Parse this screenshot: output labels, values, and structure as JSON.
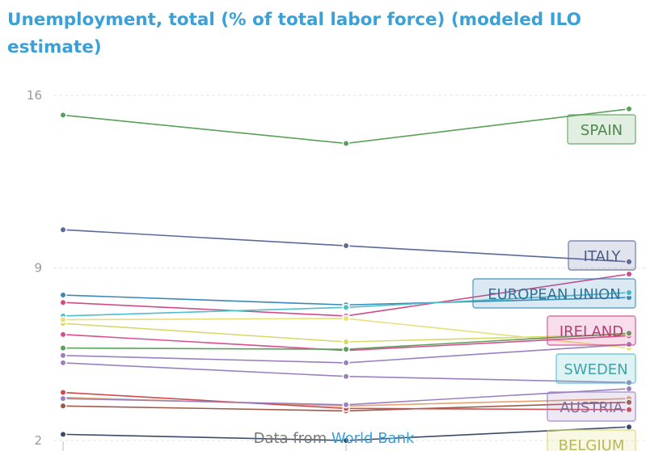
{
  "title": "Unemployment, total (% of total labor force) (modeled ILO estimate)",
  "source": {
    "prefix": "Data from ",
    "link_label": "World Bank"
  },
  "chart_data": {
    "type": "line",
    "title": "Unemployment, total (% of total labor force) (modeled ILO estimate)",
    "xlabel": "",
    "ylabel": "",
    "x": [
      0,
      1,
      2
    ],
    "y_ticks": [
      16,
      9,
      2
    ],
    "ylim": [
      2,
      16
    ],
    "grid": true,
    "series": [
      {
        "name": "SPAIN",
        "color": "#5aa05a",
        "values": [
          15.2,
          14.05,
          15.45
        ],
        "labeled": true
      },
      {
        "name": "ITALY",
        "color": "#5a6a9c",
        "values": [
          10.55,
          9.9,
          9.25
        ],
        "labeled": true
      },
      {
        "name": "EUROPEAN UNION",
        "color": "#3a88b8",
        "values": [
          7.9,
          7.5,
          7.8
        ],
        "labeled": true
      },
      {
        "name": "IRELAND",
        "color": "#d04a8a",
        "values": [
          7.6,
          7.05,
          8.75
        ],
        "labeled": true
      },
      {
        "name": "SWEDEN",
        "color": "#4ebec8",
        "values": [
          7.05,
          7.4,
          8.0
        ],
        "labeled": true
      },
      {
        "name": "AUSTRIA",
        "color": "#9a80c0",
        "values": [
          5.15,
          4.6,
          4.35
        ],
        "labeled": true
      },
      {
        "name": "BELGIUM",
        "color": "#d8d86a",
        "values": [
          6.75,
          6.0,
          6.3
        ],
        "labeled": true
      },
      {
        "name": "",
        "color": "#e8e07a",
        "values": [
          6.9,
          6.95,
          5.75
        ],
        "labeled": false
      },
      {
        "name": "",
        "color": "#d84e8c",
        "values": [
          6.3,
          5.65,
          6.25
        ],
        "labeled": false
      },
      {
        "name": "",
        "color": "#5aa05a",
        "values": [
          5.75,
          5.7,
          6.35
        ],
        "labeled": false
      },
      {
        "name": "",
        "color": "#9a80c0",
        "values": [
          5.45,
          5.15,
          5.9
        ],
        "labeled": false
      },
      {
        "name": "",
        "color": "#e8a070",
        "values": [
          3.75,
          3.4,
          3.7
        ],
        "labeled": false
      },
      {
        "name": "",
        "color": "#a05a4a",
        "values": [
          3.4,
          3.2,
          3.55
        ],
        "labeled": false
      },
      {
        "name": "",
        "color": "#d04a4a",
        "values": [
          3.95,
          3.3,
          3.25
        ],
        "labeled": false
      },
      {
        "name": "",
        "color": "#9a80c0",
        "values": [
          3.7,
          3.45,
          4.1
        ],
        "labeled": false
      },
      {
        "name": "",
        "color": "#3a4a6a",
        "values": [
          2.25,
          2.0,
          2.55
        ],
        "labeled": false
      }
    ]
  }
}
